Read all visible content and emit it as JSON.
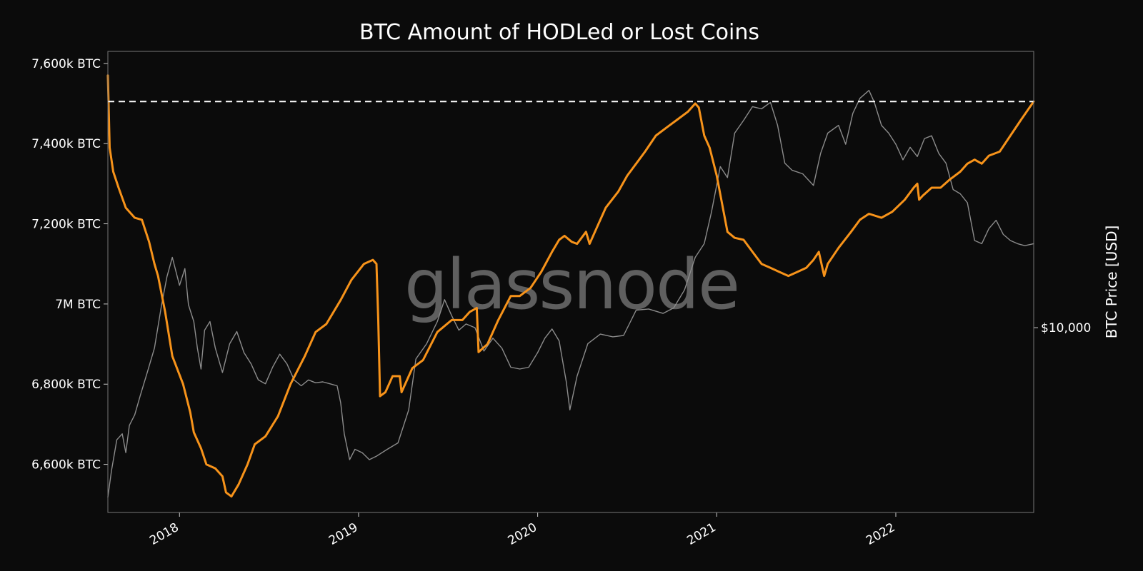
{
  "chart_data": {
    "type": "line",
    "title": "BTC Amount of HODLed or Lost Coins",
    "watermark": "glassnode",
    "left_axis": {
      "ticks": [
        {
          "value": 6600,
          "label": "6,600k BTC"
        },
        {
          "value": 6800,
          "label": "6,800k BTC"
        },
        {
          "value": 7000,
          "label": "7M BTC"
        },
        {
          "value": 7200,
          "label": "7,200k BTC"
        },
        {
          "value": 7400,
          "label": "7,400k BTC"
        },
        {
          "value": 7600,
          "label": "7,600k BTC"
        }
      ],
      "ylim": [
        6480,
        7630
      ],
      "unit": "k BTC"
    },
    "right_axis": {
      "label": "BTC Price [USD]",
      "scale": "log",
      "ticks": [
        {
          "value": 10000,
          "label": "$10,000"
        }
      ],
      "ylim": [
        2300,
        90000
      ]
    },
    "x_axis": {
      "xlim": [
        2017.6,
        2022.77
      ],
      "ticks": [
        {
          "value": 2018,
          "label": "2018"
        },
        {
          "value": 2019,
          "label": "2019"
        },
        {
          "value": 2020,
          "label": "2020"
        },
        {
          "value": 2021,
          "label": "2021"
        },
        {
          "value": 2022,
          "label": "2022"
        }
      ]
    },
    "reference_line": {
      "value": 7505,
      "style": "dashed",
      "color": "#ffffff"
    },
    "series": [
      {
        "axis": "left",
        "color": "#f7931a",
        "points": [
          [
            2017.6,
            7570
          ],
          [
            2017.61,
            7390
          ],
          [
            2017.63,
            7330
          ],
          [
            2017.66,
            7290
          ],
          [
            2017.7,
            7240
          ],
          [
            2017.75,
            7215
          ],
          [
            2017.79,
            7210
          ],
          [
            2017.83,
            7155
          ],
          [
            2017.86,
            7100
          ],
          [
            2017.88,
            7070
          ],
          [
            2017.92,
            6980
          ],
          [
            2017.96,
            6870
          ],
          [
            2018.02,
            6800
          ],
          [
            2018.06,
            6730
          ],
          [
            2018.08,
            6680
          ],
          [
            2018.12,
            6640
          ],
          [
            2018.15,
            6600
          ],
          [
            2018.2,
            6590
          ],
          [
            2018.24,
            6570
          ],
          [
            2018.26,
            6530
          ],
          [
            2018.29,
            6520
          ],
          [
            2018.33,
            6550
          ],
          [
            2018.38,
            6600
          ],
          [
            2018.42,
            6650
          ],
          [
            2018.48,
            6670
          ],
          [
            2018.55,
            6720
          ],
          [
            2018.62,
            6800
          ],
          [
            2018.7,
            6870
          ],
          [
            2018.76,
            6930
          ],
          [
            2018.82,
            6950
          ],
          [
            2018.9,
            7010
          ],
          [
            2018.96,
            7060
          ],
          [
            2019.03,
            7100
          ],
          [
            2019.08,
            7110
          ],
          [
            2019.1,
            7100
          ],
          [
            2019.11,
            6960
          ],
          [
            2019.12,
            6770
          ],
          [
            2019.15,
            6780
          ],
          [
            2019.19,
            6820
          ],
          [
            2019.23,
            6820
          ],
          [
            2019.24,
            6780
          ],
          [
            2019.3,
            6840
          ],
          [
            2019.36,
            6860
          ],
          [
            2019.44,
            6930
          ],
          [
            2019.52,
            6960
          ],
          [
            2019.58,
            6960
          ],
          [
            2019.62,
            6980
          ],
          [
            2019.66,
            6990
          ],
          [
            2019.67,
            6880
          ],
          [
            2019.72,
            6900
          ],
          [
            2019.78,
            6960
          ],
          [
            2019.85,
            7020
          ],
          [
            2019.9,
            7020
          ],
          [
            2019.96,
            7040
          ],
          [
            2020.02,
            7080
          ],
          [
            2020.08,
            7130
          ],
          [
            2020.12,
            7160
          ],
          [
            2020.15,
            7170
          ],
          [
            2020.19,
            7155
          ],
          [
            2020.22,
            7150
          ],
          [
            2020.27,
            7180
          ],
          [
            2020.29,
            7150
          ],
          [
            2020.33,
            7190
          ],
          [
            2020.38,
            7240
          ],
          [
            2020.45,
            7280
          ],
          [
            2020.5,
            7320
          ],
          [
            2020.55,
            7350
          ],
          [
            2020.6,
            7380
          ],
          [
            2020.66,
            7420
          ],
          [
            2020.72,
            7440
          ],
          [
            2020.78,
            7460
          ],
          [
            2020.84,
            7480
          ],
          [
            2020.88,
            7500
          ],
          [
            2020.9,
            7490
          ],
          [
            2020.93,
            7420
          ],
          [
            2020.96,
            7390
          ],
          [
            2021.0,
            7320
          ],
          [
            2021.03,
            7250
          ],
          [
            2021.06,
            7180
          ],
          [
            2021.1,
            7165
          ],
          [
            2021.15,
            7160
          ],
          [
            2021.2,
            7130
          ],
          [
            2021.25,
            7100
          ],
          [
            2021.3,
            7090
          ],
          [
            2021.35,
            7080
          ],
          [
            2021.4,
            7070
          ],
          [
            2021.45,
            7080
          ],
          [
            2021.5,
            7090
          ],
          [
            2021.54,
            7110
          ],
          [
            2021.57,
            7130
          ],
          [
            2021.6,
            7070
          ],
          [
            2021.62,
            7100
          ],
          [
            2021.68,
            7140
          ],
          [
            2021.75,
            7180
          ],
          [
            2021.8,
            7210
          ],
          [
            2021.85,
            7225
          ],
          [
            2021.92,
            7215
          ],
          [
            2021.98,
            7230
          ],
          [
            2022.05,
            7260
          ],
          [
            2022.1,
            7290
          ],
          [
            2022.12,
            7300
          ],
          [
            2022.13,
            7260
          ],
          [
            2022.15,
            7270
          ],
          [
            2022.2,
            7290
          ],
          [
            2022.25,
            7290
          ],
          [
            2022.3,
            7310
          ],
          [
            2022.36,
            7330
          ],
          [
            2022.4,
            7350
          ],
          [
            2022.44,
            7360
          ],
          [
            2022.48,
            7350
          ],
          [
            2022.52,
            7370
          ],
          [
            2022.58,
            7380
          ],
          [
            2022.64,
            7420
          ],
          [
            2022.7,
            7460
          ],
          [
            2022.77,
            7505
          ]
        ]
      },
      {
        "axis": "right",
        "color": "#8c8c8c",
        "points": [
          [
            2017.6,
            2600
          ],
          [
            2017.62,
            3200
          ],
          [
            2017.65,
            4100
          ],
          [
            2017.68,
            4300
          ],
          [
            2017.7,
            3700
          ],
          [
            2017.72,
            4600
          ],
          [
            2017.75,
            5000
          ],
          [
            2017.78,
            5800
          ],
          [
            2017.82,
            7000
          ],
          [
            2017.86,
            8500
          ],
          [
            2017.9,
            12000
          ],
          [
            2017.93,
            15000
          ],
          [
            2017.96,
            17500
          ],
          [
            2018.0,
            14000
          ],
          [
            2018.03,
            16000
          ],
          [
            2018.05,
            12000
          ],
          [
            2018.08,
            10500
          ],
          [
            2018.1,
            8500
          ],
          [
            2018.12,
            7200
          ],
          [
            2018.14,
            9800
          ],
          [
            2018.17,
            10500
          ],
          [
            2018.2,
            8500
          ],
          [
            2018.24,
            7000
          ],
          [
            2018.28,
            8800
          ],
          [
            2018.32,
            9700
          ],
          [
            2018.36,
            8200
          ],
          [
            2018.4,
            7500
          ],
          [
            2018.44,
            6600
          ],
          [
            2018.48,
            6400
          ],
          [
            2018.52,
            7300
          ],
          [
            2018.56,
            8100
          ],
          [
            2018.6,
            7500
          ],
          [
            2018.64,
            6600
          ],
          [
            2018.68,
            6300
          ],
          [
            2018.72,
            6600
          ],
          [
            2018.76,
            6450
          ],
          [
            2018.8,
            6500
          ],
          [
            2018.84,
            6400
          ],
          [
            2018.88,
            6300
          ],
          [
            2018.9,
            5500
          ],
          [
            2018.92,
            4300
          ],
          [
            2018.95,
            3500
          ],
          [
            2018.98,
            3800
          ],
          [
            2019.02,
            3700
          ],
          [
            2019.06,
            3500
          ],
          [
            2019.1,
            3600
          ],
          [
            2019.16,
            3800
          ],
          [
            2019.22,
            4000
          ],
          [
            2019.28,
            5200
          ],
          [
            2019.32,
            7800
          ],
          [
            2019.38,
            8800
          ],
          [
            2019.44,
            10500
          ],
          [
            2019.48,
            12500
          ],
          [
            2019.52,
            11000
          ],
          [
            2019.56,
            9800
          ],
          [
            2019.6,
            10300
          ],
          [
            2019.65,
            10000
          ],
          [
            2019.7,
            8300
          ],
          [
            2019.75,
            9200
          ],
          [
            2019.8,
            8500
          ],
          [
            2019.85,
            7300
          ],
          [
            2019.9,
            7200
          ],
          [
            2019.95,
            7300
          ],
          [
            2020.0,
            8200
          ],
          [
            2020.04,
            9200
          ],
          [
            2020.08,
            9900
          ],
          [
            2020.12,
            9000
          ],
          [
            2020.16,
            6500
          ],
          [
            2020.18,
            5200
          ],
          [
            2020.22,
            6800
          ],
          [
            2020.28,
            8800
          ],
          [
            2020.35,
            9500
          ],
          [
            2020.42,
            9300
          ],
          [
            2020.48,
            9400
          ],
          [
            2020.55,
            11500
          ],
          [
            2020.62,
            11600
          ],
          [
            2020.7,
            11200
          ],
          [
            2020.76,
            11700
          ],
          [
            2020.82,
            13500
          ],
          [
            2020.88,
            17500
          ],
          [
            2020.93,
            19500
          ],
          [
            2020.97,
            25000
          ],
          [
            2021.02,
            36000
          ],
          [
            2021.06,
            33000
          ],
          [
            2021.1,
            47000
          ],
          [
            2021.15,
            52000
          ],
          [
            2021.2,
            58000
          ],
          [
            2021.25,
            57000
          ],
          [
            2021.3,
            60000
          ],
          [
            2021.34,
            50000
          ],
          [
            2021.38,
            37000
          ],
          [
            2021.42,
            35000
          ],
          [
            2021.48,
            34000
          ],
          [
            2021.54,
            31000
          ],
          [
            2021.58,
            40000
          ],
          [
            2021.62,
            47000
          ],
          [
            2021.68,
            50000
          ],
          [
            2021.72,
            43000
          ],
          [
            2021.76,
            55000
          ],
          [
            2021.8,
            62000
          ],
          [
            2021.85,
            66000
          ],
          [
            2021.88,
            60000
          ],
          [
            2021.92,
            50000
          ],
          [
            2021.96,
            47000
          ],
          [
            2022.0,
            43000
          ],
          [
            2022.04,
            38000
          ],
          [
            2022.08,
            42000
          ],
          [
            2022.12,
            39000
          ],
          [
            2022.16,
            45000
          ],
          [
            2022.2,
            46000
          ],
          [
            2022.24,
            40000
          ],
          [
            2022.28,
            37000
          ],
          [
            2022.32,
            30000
          ],
          [
            2022.36,
            29000
          ],
          [
            2022.4,
            27000
          ],
          [
            2022.44,
            20000
          ],
          [
            2022.48,
            19500
          ],
          [
            2022.52,
            22000
          ],
          [
            2022.56,
            23500
          ],
          [
            2022.6,
            21000
          ],
          [
            2022.64,
            20000
          ],
          [
            2022.68,
            19500
          ],
          [
            2022.72,
            19200
          ],
          [
            2022.77,
            19500
          ]
        ]
      }
    ]
  }
}
